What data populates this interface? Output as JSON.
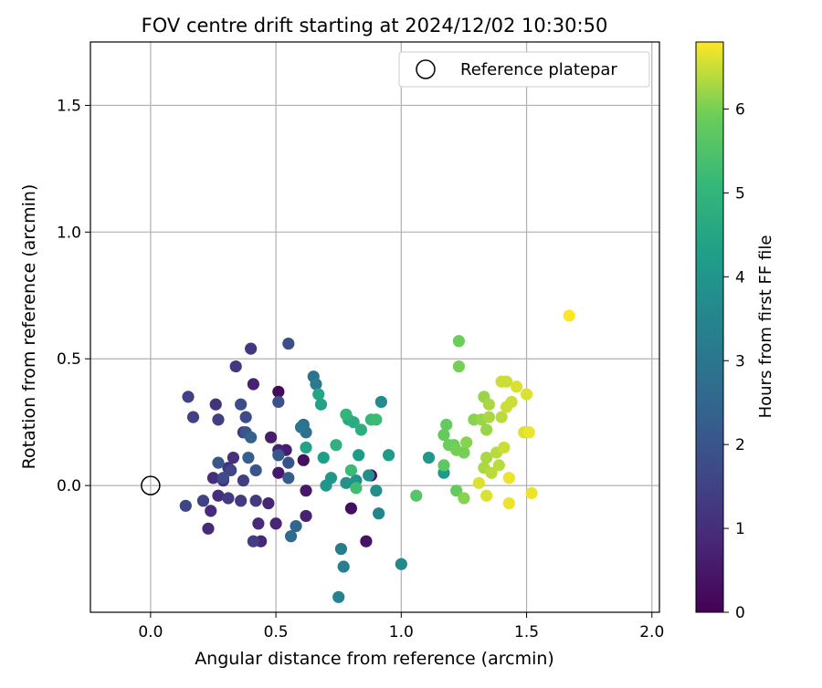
{
  "chart_data": {
    "type": "scatter",
    "title": "FOV centre drift starting at 2024/12/02 10:30:50",
    "xlabel": "Angular distance from reference (arcmin)",
    "ylabel": "Rotation from reference (arcmin)",
    "xlim": [
      -0.24,
      2.03
    ],
    "ylim": [
      -0.5,
      1.75
    ],
    "xticks": [
      "0.0",
      "0.5",
      "1.0",
      "1.5",
      "2.0"
    ],
    "xtick_values": [
      0,
      0.5,
      1.0,
      1.5,
      2.0
    ],
    "yticks": [
      "0.0",
      "0.5",
      "1.0",
      "1.5"
    ],
    "ytick_values": [
      0,
      0.5,
      1.0,
      1.5
    ],
    "grid": true,
    "legend": {
      "position": "top-right",
      "entries": [
        {
          "label": "Reference platepar",
          "marker": "open-circle",
          "x": 0,
          "y": 0
        }
      ]
    },
    "colorbar": {
      "label": "Hours from first FF file",
      "colormap": "viridis",
      "range": [
        0,
        6.8
      ],
      "ticks": [
        "0",
        "1",
        "2",
        "3",
        "4",
        "5",
        "6"
      ],
      "tick_values": [
        0,
        1,
        2,
        3,
        4,
        5,
        6
      ]
    },
    "points": [
      {
        "x": 0.51,
        "y": 0.37,
        "c": 0.2
      },
      {
        "x": 0.61,
        "y": 0.1,
        "c": 0.3
      },
      {
        "x": 0.8,
        "y": -0.09,
        "c": 0.3
      },
      {
        "x": 0.86,
        "y": -0.22,
        "c": 0.4
      },
      {
        "x": 0.88,
        "y": 0.04,
        "c": 0.4
      },
      {
        "x": 0.51,
        "y": 0.05,
        "c": 0.5
      },
      {
        "x": 0.62,
        "y": -0.02,
        "c": 0.5
      },
      {
        "x": 0.54,
        "y": 0.14,
        "c": 0.6
      },
      {
        "x": 0.48,
        "y": 0.19,
        "c": 0.6
      },
      {
        "x": 0.41,
        "y": 0.4,
        "c": 0.7
      },
      {
        "x": 0.51,
        "y": 0.14,
        "c": 0.7
      },
      {
        "x": 0.62,
        "y": -0.12,
        "c": 0.7
      },
      {
        "x": 0.5,
        "y": -0.15,
        "c": 0.8
      },
      {
        "x": 0.47,
        "y": -0.07,
        "c": 0.8
      },
      {
        "x": 0.44,
        "y": -0.22,
        "c": 0.8
      },
      {
        "x": 0.43,
        "y": -0.15,
        "c": 0.9
      },
      {
        "x": 0.23,
        "y": -0.17,
        "c": 0.9
      },
      {
        "x": 0.24,
        "y": -0.1,
        "c": 0.9
      },
      {
        "x": 0.27,
        "y": -0.04,
        "c": 1.0
      },
      {
        "x": 0.29,
        "y": 0.02,
        "c": 1.0
      },
      {
        "x": 0.25,
        "y": 0.03,
        "c": 1.0
      },
      {
        "x": 0.31,
        "y": 0.07,
        "c": 1.1
      },
      {
        "x": 0.33,
        "y": 0.11,
        "c": 1.1
      },
      {
        "x": 0.26,
        "y": 0.32,
        "c": 1.1
      },
      {
        "x": 0.34,
        "y": 0.47,
        "c": 1.2
      },
      {
        "x": 0.4,
        "y": 0.54,
        "c": 1.2
      },
      {
        "x": 0.37,
        "y": 0.21,
        "c": 1.2
      },
      {
        "x": 0.36,
        "y": -0.06,
        "c": 1.3
      },
      {
        "x": 0.31,
        "y": -0.05,
        "c": 1.3
      },
      {
        "x": 0.42,
        "y": -0.06,
        "c": 1.3
      },
      {
        "x": 0.41,
        "y": -0.22,
        "c": 1.4
      },
      {
        "x": 0.37,
        "y": 0.02,
        "c": 1.4
      },
      {
        "x": 0.27,
        "y": 0.26,
        "c": 1.4
      },
      {
        "x": 0.15,
        "y": 0.35,
        "c": 1.5
      },
      {
        "x": 0.17,
        "y": 0.27,
        "c": 1.5
      },
      {
        "x": 0.21,
        "y": -0.06,
        "c": 1.5
      },
      {
        "x": 0.14,
        "y": -0.08,
        "c": 1.6
      },
      {
        "x": 0.32,
        "y": 0.06,
        "c": 1.6
      },
      {
        "x": 0.29,
        "y": 0.03,
        "c": 1.7
      },
      {
        "x": 0.38,
        "y": 0.27,
        "c": 1.7
      },
      {
        "x": 0.36,
        "y": 0.32,
        "c": 1.8
      },
      {
        "x": 0.55,
        "y": 0.56,
        "c": 1.8
      },
      {
        "x": 0.51,
        "y": 0.33,
        "c": 1.9
      },
      {
        "x": 0.55,
        "y": 0.09,
        "c": 1.9
      },
      {
        "x": 0.42,
        "y": 0.06,
        "c": 2.0
      },
      {
        "x": 0.38,
        "y": 0.21,
        "c": 2.0
      },
      {
        "x": 0.27,
        "y": 0.09,
        "c": 2.1
      },
      {
        "x": 0.51,
        "y": 0.12,
        "c": 2.1
      },
      {
        "x": 0.55,
        "y": 0.03,
        "c": 2.2
      },
      {
        "x": 0.39,
        "y": 0.11,
        "c": 2.3
      },
      {
        "x": 0.4,
        "y": 0.19,
        "c": 2.4
      },
      {
        "x": 0.58,
        "y": -0.16,
        "c": 2.5
      },
      {
        "x": 0.56,
        "y": -0.2,
        "c": 2.6
      },
      {
        "x": 0.61,
        "y": 0.24,
        "c": 2.7
      },
      {
        "x": 0.62,
        "y": 0.21,
        "c": 2.8
      },
      {
        "x": 0.65,
        "y": 0.43,
        "c": 2.9
      },
      {
        "x": 0.6,
        "y": 0.23,
        "c": 3.0
      },
      {
        "x": 0.66,
        "y": 0.4,
        "c": 3.1
      },
      {
        "x": 0.76,
        "y": -0.25,
        "c": 3.2
      },
      {
        "x": 0.77,
        "y": -0.32,
        "c": 3.3
      },
      {
        "x": 0.75,
        "y": -0.44,
        "c": 3.4
      },
      {
        "x": 0.91,
        "y": -0.11,
        "c": 3.5
      },
      {
        "x": 1.0,
        "y": -0.31,
        "c": 3.6
      },
      {
        "x": 0.92,
        "y": 0.33,
        "c": 3.7
      },
      {
        "x": 0.87,
        "y": 0.04,
        "c": 3.8
      },
      {
        "x": 0.9,
        "y": -0.02,
        "c": 3.8
      },
      {
        "x": 0.78,
        "y": 0.01,
        "c": 3.9
      },
      {
        "x": 0.82,
        "y": 0.02,
        "c": 3.9
      },
      {
        "x": 0.7,
        "y": 0.0,
        "c": 4.0
      },
      {
        "x": 0.72,
        "y": 0.03,
        "c": 4.0
      },
      {
        "x": 1.11,
        "y": 0.11,
        "c": 4.1
      },
      {
        "x": 1.17,
        "y": 0.05,
        "c": 4.1
      },
      {
        "x": 0.95,
        "y": 0.12,
        "c": 4.2
      },
      {
        "x": 0.83,
        "y": 0.12,
        "c": 4.2
      },
      {
        "x": 0.69,
        "y": 0.11,
        "c": 4.3
      },
      {
        "x": 0.62,
        "y": 0.15,
        "c": 4.4
      },
      {
        "x": 0.68,
        "y": 0.32,
        "c": 4.4
      },
      {
        "x": 0.67,
        "y": 0.36,
        "c": 4.5
      },
      {
        "x": 0.79,
        "y": 0.26,
        "c": 4.6
      },
      {
        "x": 0.81,
        "y": 0.25,
        "c": 4.7
      },
      {
        "x": 0.84,
        "y": 0.22,
        "c": 4.8
      },
      {
        "x": 0.74,
        "y": 0.16,
        "c": 4.9
      },
      {
        "x": 0.78,
        "y": 0.28,
        "c": 5.0
      },
      {
        "x": 0.88,
        "y": 0.26,
        "c": 5.1
      },
      {
        "x": 0.9,
        "y": 0.26,
        "c": 5.2
      },
      {
        "x": 0.8,
        "y": 0.06,
        "c": 5.2
      },
      {
        "x": 0.82,
        "y": -0.01,
        "c": 5.3
      },
      {
        "x": 1.06,
        "y": -0.04,
        "c": 5.6
      },
      {
        "x": 1.17,
        "y": 0.08,
        "c": 5.7
      },
      {
        "x": 1.22,
        "y": -0.02,
        "c": 5.8
      },
      {
        "x": 1.17,
        "y": 0.2,
        "c": 5.8
      },
      {
        "x": 1.18,
        "y": 0.24,
        "c": 5.8
      },
      {
        "x": 1.19,
        "y": 0.16,
        "c": 5.9
      },
      {
        "x": 1.21,
        "y": 0.16,
        "c": 5.9
      },
      {
        "x": 1.23,
        "y": 0.57,
        "c": 5.9
      },
      {
        "x": 1.23,
        "y": 0.47,
        "c": 6.0
      },
      {
        "x": 1.22,
        "y": 0.14,
        "c": 6.0
      },
      {
        "x": 1.25,
        "y": 0.13,
        "c": 6.0
      },
      {
        "x": 1.25,
        "y": -0.05,
        "c": 6.1
      },
      {
        "x": 1.26,
        "y": 0.17,
        "c": 6.1
      },
      {
        "x": 1.29,
        "y": 0.26,
        "c": 6.1
      },
      {
        "x": 1.32,
        "y": 0.26,
        "c": 6.2
      },
      {
        "x": 1.33,
        "y": 0.35,
        "c": 6.2
      },
      {
        "x": 1.34,
        "y": 0.22,
        "c": 6.2
      },
      {
        "x": 1.35,
        "y": 0.32,
        "c": 6.3
      },
      {
        "x": 1.34,
        "y": 0.11,
        "c": 6.3
      },
      {
        "x": 1.33,
        "y": 0.07,
        "c": 6.3
      },
      {
        "x": 1.35,
        "y": 0.27,
        "c": 6.3
      },
      {
        "x": 1.36,
        "y": 0.05,
        "c": 6.4
      },
      {
        "x": 1.38,
        "y": 0.13,
        "c": 6.4
      },
      {
        "x": 1.39,
        "y": 0.08,
        "c": 6.4
      },
      {
        "x": 1.4,
        "y": 0.27,
        "c": 6.4
      },
      {
        "x": 1.4,
        "y": 0.41,
        "c": 6.5
      },
      {
        "x": 1.42,
        "y": 0.41,
        "c": 6.5
      },
      {
        "x": 1.42,
        "y": 0.31,
        "c": 6.5
      },
      {
        "x": 1.41,
        "y": 0.15,
        "c": 6.5
      },
      {
        "x": 1.44,
        "y": 0.33,
        "c": 6.5
      },
      {
        "x": 1.46,
        "y": 0.39,
        "c": 6.6
      },
      {
        "x": 1.5,
        "y": 0.36,
        "c": 6.6
      },
      {
        "x": 1.49,
        "y": 0.21,
        "c": 6.6
      },
      {
        "x": 1.51,
        "y": 0.21,
        "c": 6.7
      },
      {
        "x": 1.43,
        "y": 0.03,
        "c": 6.7
      },
      {
        "x": 1.43,
        "y": -0.07,
        "c": 6.7
      },
      {
        "x": 1.52,
        "y": -0.03,
        "c": 6.7
      },
      {
        "x": 1.34,
        "y": -0.04,
        "c": 6.6
      },
      {
        "x": 1.31,
        "y": 0.01,
        "c": 6.6
      },
      {
        "x": 1.67,
        "y": 0.67,
        "c": 6.8
      }
    ]
  }
}
